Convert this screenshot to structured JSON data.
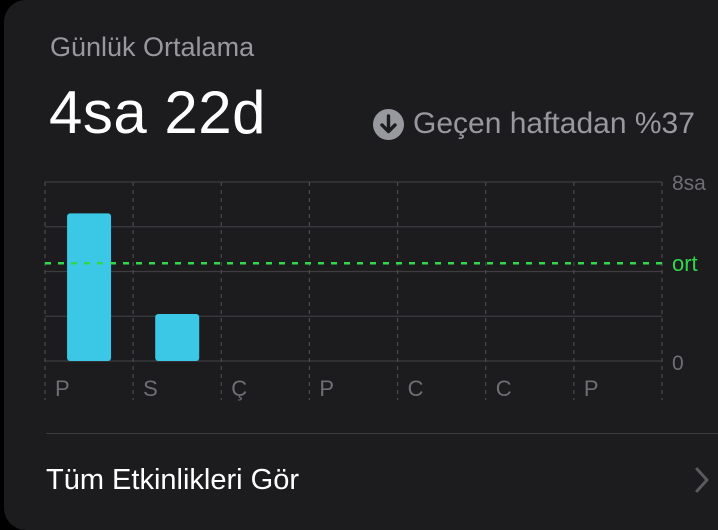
{
  "card": {
    "subtitle": "Günlük Ortalama",
    "value": "4sa 22d",
    "change_text": "Geçen haftadan %37",
    "change_icon": "arrow-down-circle-icon",
    "footer_label": "Tüm Etkinlikleri Gör",
    "footer_icon": "chevron-right-icon"
  },
  "colors": {
    "card_bg": "#1c1c1e",
    "bar": "#3ac8e6",
    "average_line": "#32d74b",
    "secondary_text": "#98989f"
  },
  "chart_data": {
    "type": "bar",
    "categories": [
      "P",
      "S",
      "Ç",
      "P",
      "C",
      "C",
      "P"
    ],
    "values": [
      6.6,
      2.1,
      0,
      0,
      0,
      0,
      0
    ],
    "ylim": [
      0,
      8
    ],
    "y_tick_labels": [
      "8sa",
      "ort",
      "0"
    ],
    "average": 4.37,
    "average_label": "ort",
    "grid": true
  }
}
